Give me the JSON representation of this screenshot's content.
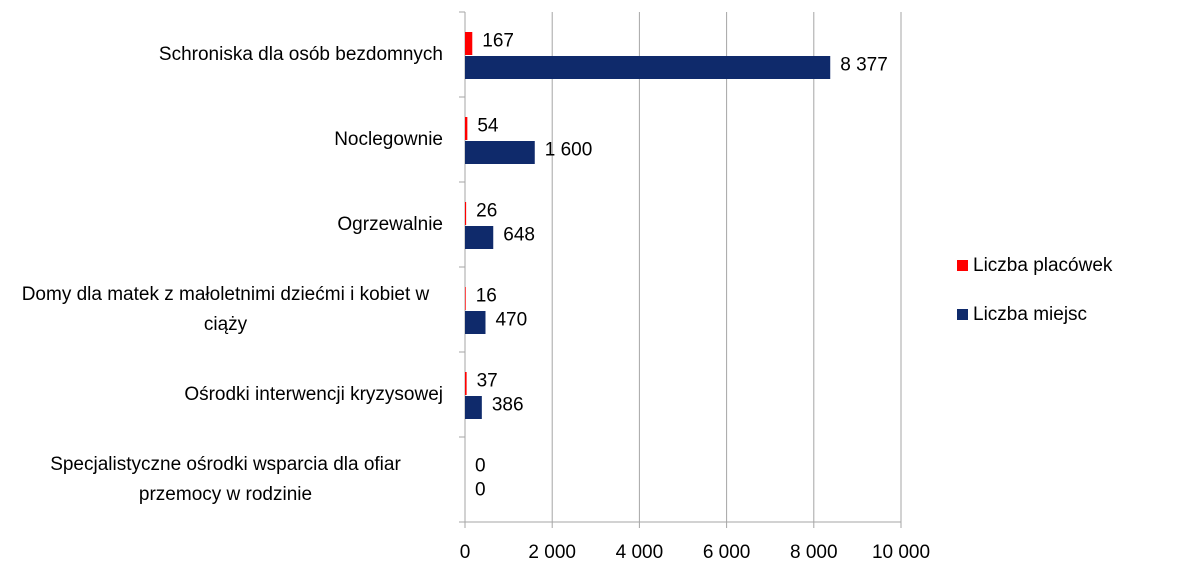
{
  "chart_data": {
    "type": "barh",
    "categories": [
      "Schroniska dla osób bezdomnych",
      "Noclegownie",
      "Ogrzewalnie",
      "Domy dla matek z małoletnimi dziećmi i kobiet w ciąży",
      "Ośrodki interwencji kryzysowej",
      "Specjalistyczne ośrodki wsparcia dla ofiar przemocy w rodzinie"
    ],
    "series": [
      {
        "name": "Liczba placówek",
        "color": "#ff0000",
        "values": [
          167,
          54,
          26,
          16,
          37,
          0
        ],
        "value_labels": [
          "167",
          "54",
          "26",
          "16",
          "37",
          "0"
        ]
      },
      {
        "name": "Liczba miejsc",
        "color": "#0f2a6b",
        "values": [
          8377,
          1600,
          648,
          470,
          386,
          0
        ],
        "value_labels": [
          "8 377",
          "1 600",
          "648",
          "470",
          "386",
          "0"
        ]
      }
    ],
    "xlim": [
      0,
      10000
    ],
    "xticks": [
      0,
      {
        "value": 2000,
        "label": "2 000"
      },
      {
        "value": 4000,
        "label": "4 000"
      },
      {
        "value": 6000,
        "label": "6 000"
      },
      {
        "value": 8000,
        "label": "8 000"
      },
      {
        "value": 10000,
        "label": "10 000"
      }
    ],
    "grid": true,
    "legend": "right"
  }
}
